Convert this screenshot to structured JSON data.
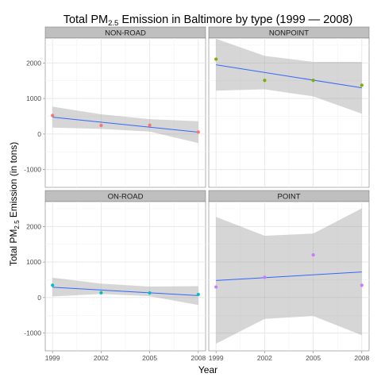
{
  "chart_data": {
    "type": "scatter",
    "title": "Total PM",
    "title_sub": "2.5",
    "title_rest": " Emission in Baltimore by type (1999 — 2008)",
    "xlabel": "Year",
    "ylabel": "Total PM",
    "ylabel_sub": "2.5",
    "ylabel_rest": " Emission (in tons)",
    "x_ticks": [
      1999,
      2002,
      2005,
      2008
    ],
    "y_ticks": [
      -1000,
      0,
      1000,
      2000
    ],
    "xlim": [
      1998.55,
      2008.45
    ],
    "ylim": [
      -1500,
      2700
    ],
    "grid": true,
    "panels": [
      {
        "name": "NON-ROAD",
        "color": "#f8766d",
        "x": [
          1999,
          2002,
          2005,
          2008
        ],
        "y": [
          522,
          241,
          249,
          55
        ],
        "fit": [
          475,
          53
        ],
        "band_upper": [
          770,
          555,
          420,
          360
        ],
        "band_lower": [
          180,
          145,
          70,
          -255
        ]
      },
      {
        "name": "NONPOINT",
        "color": "#7cae00",
        "x": [
          1999,
          2002,
          2005,
          2008
        ],
        "y": [
          2107,
          1510,
          1510,
          1373
        ],
        "fit": [
          1950,
          1300
        ],
        "band_upper": [
          2680,
          2200,
          2030,
          2030
        ],
        "band_lower": [
          1220,
          1260,
          1060,
          570
        ]
      },
      {
        "name": "ON-ROAD",
        "color": "#00bfc4",
        "x": [
          1999,
          2002,
          2005,
          2008
        ],
        "y": [
          347,
          134,
          130,
          88
        ],
        "fit": [
          290,
          55
        ],
        "band_upper": [
          560,
          390,
          310,
          320
        ],
        "band_lower": [
          30,
          100,
          40,
          -210
        ]
      },
      {
        "name": "POINT",
        "color": "#c77cff",
        "x": [
          1999,
          2002,
          2005,
          2008
        ],
        "y": [
          297,
          570,
          1200,
          345
        ],
        "fit": [
          480,
          720
        ],
        "band_upper": [
          2270,
          1740,
          1800,
          2510
        ],
        "band_lower": [
          -1300,
          -600,
          -520,
          -1060
        ]
      }
    ],
    "fit_color": "#3366ff",
    "band_color": "#999999"
  }
}
